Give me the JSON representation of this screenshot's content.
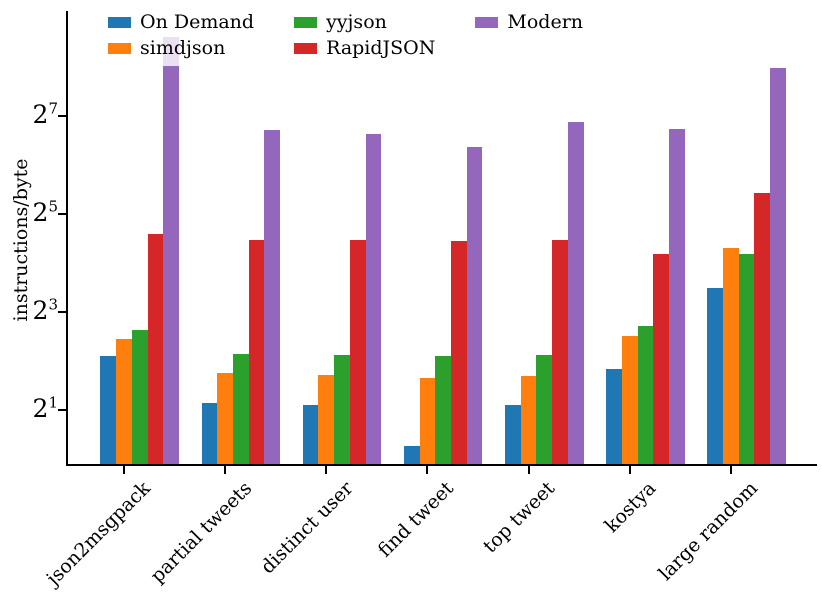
{
  "chart_data": {
    "type": "bar",
    "title": "",
    "xlabel": "",
    "ylabel": "instructions/byte",
    "yscale": "log2",
    "ylim": [
      0.932,
      565
    ],
    "yticks": [
      {
        "base": "2",
        "exp": "1"
      },
      {
        "base": "2",
        "exp": "3"
      },
      {
        "base": "2",
        "exp": "5"
      },
      {
        "base": "2",
        "exp": "7"
      }
    ],
    "grid": false,
    "legend_position": "upper left",
    "legend_columns": 3,
    "categories": [
      "json2msgpack",
      "partial tweets",
      "distinct user",
      "find tweet",
      "top tweet",
      "kostya",
      "large random"
    ],
    "series": [
      {
        "name": "On Demand",
        "color": "#1f77b4",
        "values": [
          4.3,
          2.2,
          2.15,
          1.2,
          2.15,
          3.55,
          11.3
        ]
      },
      {
        "name": "simdjson",
        "color": "#ff7f0e",
        "values": [
          5.5,
          3.4,
          3.3,
          3.15,
          3.25,
          5.7,
          19.7
        ]
      },
      {
        "name": "yyjson",
        "color": "#2ca02c",
        "values": [
          6.2,
          4.4,
          4.35,
          4.3,
          4.35,
          6.55,
          18.3
        ]
      },
      {
        "name": "RapidJSON",
        "color": "#d62728",
        "values": [
          24.0,
          22.3,
          22.1,
          21.8,
          22.1,
          18.1,
          43.3
        ]
      },
      {
        "name": "Modern",
        "color": "#9467bd",
        "values": [
          393,
          105,
          99,
          83,
          118,
          106.5,
          251
        ]
      }
    ]
  }
}
